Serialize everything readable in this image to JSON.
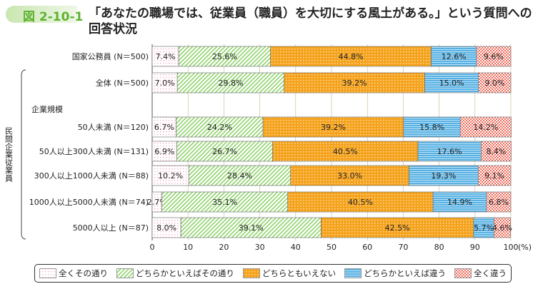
{
  "figure_number": "図 2-10-1",
  "title": "「あなたの職場では、従業員（職員）を大切にする風土がある。」という質問への回答状況",
  "chart_data": {
    "type": "bar",
    "orientation": "horizontal",
    "stacked": true,
    "categories": [
      "国家公務員 (N＝500)",
      "全体 (N＝500)",
      "50人未満 (N＝120)",
      "50人以上300人未満 (N＝131)",
      "300人以上1000人未満 (N＝88)",
      "1000人以上5000人未満 (N＝74)",
      "5000人以上 (N＝87)"
    ],
    "group_label": "民間企業従業員",
    "subgroup_label": "企業規模",
    "series": [
      {
        "name": "全くその通り",
        "color": "#f7a6c8",
        "values": [
          7.4,
          7.0,
          6.7,
          6.9,
          10.2,
          2.7,
          8.0
        ]
      },
      {
        "name": "どちらかといえばその通り",
        "color": "#8fd16b",
        "values": [
          25.6,
          29.8,
          24.2,
          26.7,
          28.4,
          35.1,
          39.1
        ]
      },
      {
        "name": "どちらともいえない",
        "color": "#f5a21b",
        "values": [
          44.8,
          39.2,
          39.2,
          40.5,
          33.0,
          40.5,
          42.5
        ]
      },
      {
        "name": "どちらかといえば違う",
        "color": "#58b1e3",
        "values": [
          12.6,
          15.0,
          15.8,
          17.6,
          19.3,
          14.9,
          5.7
        ]
      },
      {
        "name": "全く違う",
        "color": "#ee6b5b",
        "values": [
          9.6,
          9.0,
          14.2,
          8.4,
          9.1,
          6.8,
          4.6
        ]
      }
    ],
    "xlim": [
      0,
      100
    ],
    "xticks": [
      0,
      10,
      20,
      30,
      40,
      50,
      60,
      70,
      80,
      90,
      100
    ],
    "xunit": "(%)",
    "legend": "bottom"
  }
}
